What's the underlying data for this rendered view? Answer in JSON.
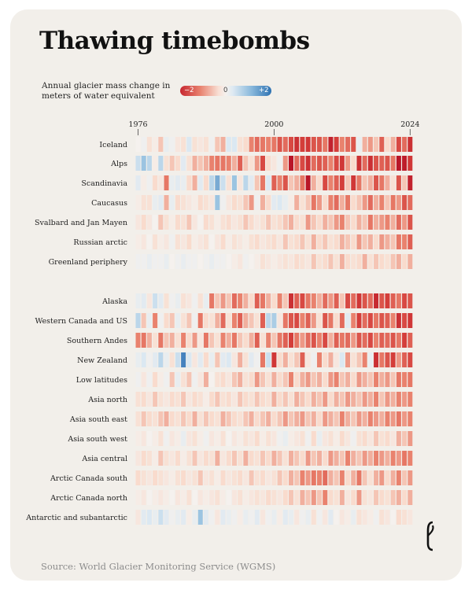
{
  "title": "Thawing timebombs",
  "legend": {
    "label": "Annual glacier mass change in meters of water equivalent",
    "min_label": "−2",
    "mid_label": "0",
    "max_label": "+2"
  },
  "source": "Source: World Glacier Monitoring Service (WGMS)",
  "logo": "Economist-e-logo",
  "colors": {
    "negative": "#c72730",
    "neutral": "#f5f1ee",
    "positive": "#2e72b2",
    "card": "#f2efea"
  },
  "chart_data": {
    "type": "heatmap",
    "title": "Thawing timebombs",
    "xlabel": "",
    "ylabel": "",
    "x_start": 1976,
    "x_end": 2024,
    "x_ticks": [
      1976,
      2000,
      2024
    ],
    "value_range": [
      -2,
      2
    ],
    "series": [
      {
        "name": "Iceland",
        "values": [
          0,
          0.1,
          -0.3,
          -0.1,
          -0.5,
          0.2,
          0.1,
          -0.2,
          -0.3,
          0.4,
          -0.3,
          -0.2,
          -0.3,
          0.1,
          -0.5,
          -0.6,
          0.4,
          0.4,
          -0.3,
          -0.4,
          -0.8,
          -1.0,
          -0.9,
          -0.8,
          -0.9,
          -1.2,
          -1.0,
          -1.3,
          -1.6,
          -1.4,
          -1.5,
          -1.2,
          -1.2,
          -0.9,
          -1.8,
          -1.4,
          -0.8,
          -1.0,
          -1.2,
          0.2,
          -0.6,
          -0.7,
          -0.5,
          -1.1,
          -0.4,
          -0.6,
          -1.3,
          -1.0,
          -1.6
        ]
      },
      {
        "name": "Alps",
        "values": [
          0.5,
          0.8,
          0.6,
          -0.1,
          0.6,
          -0.3,
          -0.5,
          -0.4,
          0.3,
          -0.3,
          -0.6,
          -0.5,
          -0.6,
          -0.8,
          -0.9,
          -0.9,
          -0.8,
          -0.6,
          -1.1,
          -0.5,
          -0.3,
          -0.7,
          -1.3,
          -0.4,
          -0.2,
          0.1,
          -0.7,
          -2.0,
          -1.0,
          -1.3,
          -1.6,
          -1.0,
          -1.2,
          -1.1,
          -0.8,
          -1.3,
          -1.5,
          -0.7,
          -0.4,
          -1.6,
          -1.0,
          -1.6,
          -1.2,
          -1.1,
          -1.2,
          -0.9,
          -2.2,
          -1.9,
          -1.5
        ]
      },
      {
        "name": "Scandinavia",
        "values": [
          0.3,
          -0.1,
          0.1,
          -0.4,
          -0.2,
          -0.9,
          0.2,
          0.3,
          0.2,
          -0.4,
          -0.6,
          0.3,
          -0.4,
          0.6,
          1.0,
          0.5,
          -0.3,
          0.8,
          -0.2,
          0.6,
          0.3,
          -0.5,
          -0.9,
          0.4,
          -1.1,
          -0.8,
          -1.2,
          -0.5,
          -0.6,
          -0.9,
          -2.1,
          -0.6,
          -0.4,
          -1.3,
          -0.8,
          -1.1,
          -1.4,
          -0.5,
          -1.5,
          -0.9,
          -0.5,
          -0.6,
          -1.2,
          -0.9,
          -0.6,
          -0.3,
          -1.2,
          -0.5,
          -1.8
        ]
      },
      {
        "name": "Caucasus",
        "values": [
          -0.1,
          -0.3,
          -0.3,
          0.2,
          0.3,
          -0.6,
          0.2,
          -0.4,
          -0.3,
          -0.2,
          -0.1,
          -0.4,
          -0.3,
          -0.2,
          0.8,
          0.1,
          -0.2,
          -0.4,
          -0.3,
          -0.5,
          -0.7,
          0.1,
          -0.6,
          -0.4,
          0.3,
          0.4,
          0.2,
          -0.1,
          -0.6,
          -0.3,
          -0.5,
          -0.9,
          -0.7,
          -0.4,
          -0.8,
          -1.0,
          -0.6,
          -0.9,
          -0.4,
          -0.5,
          -0.7,
          -1.0,
          -0.6,
          -0.8,
          -0.5,
          -0.9,
          -0.7,
          -1.2,
          -1.0
        ]
      },
      {
        "name": "Svalbard and Jan Mayen",
        "values": [
          -0.2,
          -0.4,
          -0.2,
          0,
          -0.5,
          -0.3,
          -0.1,
          -0.4,
          -0.3,
          -0.5,
          -0.2,
          0,
          -0.4,
          -0.3,
          -0.1,
          -0.3,
          -0.4,
          -0.2,
          -0.3,
          -0.5,
          -0.4,
          -0.2,
          -0.3,
          -0.5,
          -0.3,
          -0.4,
          -0.5,
          -0.6,
          -0.4,
          -0.3,
          -0.7,
          -0.5,
          -0.4,
          -0.6,
          -0.5,
          -0.7,
          -0.8,
          -0.5,
          -0.4,
          -0.6,
          -0.5,
          -0.9,
          -0.6,
          -0.7,
          -0.8,
          -0.6,
          -1.0,
          -0.7,
          -1.2
        ]
      },
      {
        "name": "Russian arctic",
        "values": [
          -0.1,
          -0.2,
          0,
          -0.3,
          -0.1,
          -0.2,
          0.1,
          -0.3,
          -0.2,
          -0.4,
          -0.1,
          -0.2,
          -0.3,
          0,
          -0.2,
          -0.4,
          -0.1,
          -0.3,
          -0.2,
          -0.1,
          -0.3,
          -0.4,
          -0.2,
          -0.3,
          -0.4,
          -0.2,
          -0.5,
          -0.3,
          -0.4,
          -0.5,
          -0.3,
          -0.6,
          -0.4,
          -0.5,
          -0.3,
          -0.4,
          -0.6,
          -0.5,
          -0.4,
          -0.7,
          -0.5,
          -0.6,
          -0.4,
          -0.7,
          -0.6,
          -0.5,
          -0.9,
          -0.8,
          -1.1
        ]
      },
      {
        "name": "Greenland periphery",
        "values": [
          0.1,
          0.1,
          0.2,
          0.1,
          0.1,
          0.2,
          0,
          0.1,
          0.2,
          0.1,
          0.1,
          0,
          0.1,
          0.2,
          0.1,
          0.1,
          0,
          -0.1,
          -0.2,
          0.1,
          0,
          -0.1,
          -0.3,
          -0.2,
          -0.1,
          -0.2,
          -0.3,
          -0.2,
          -0.4,
          -0.3,
          -0.2,
          -0.5,
          -0.3,
          -0.4,
          -0.5,
          -0.3,
          -0.6,
          -0.4,
          -0.3,
          -0.4,
          -0.6,
          -0.3,
          -0.5,
          -0.4,
          -0.3,
          -0.5,
          -0.6,
          -0.4,
          -0.6
        ]
      },
      {
        "name": "Alaska",
        "values": [
          0.2,
          0.3,
          -0.2,
          0.5,
          0.3,
          -0.3,
          0.1,
          0.2,
          -0.3,
          -0.2,
          0.1,
          -0.3,
          0.2,
          -0.9,
          -0.5,
          -0.7,
          -0.5,
          -1.0,
          -0.8,
          -0.6,
          -0.4,
          -1.1,
          -0.9,
          -0.6,
          -0.4,
          -0.8,
          -0.5,
          -1.6,
          -1.1,
          -1.3,
          -0.9,
          -0.8,
          -0.6,
          -1.0,
          -0.7,
          -1.1,
          -0.5,
          -1.3,
          -1.0,
          -1.5,
          -1.2,
          -1.0,
          -1.7,
          -1.2,
          -1.4,
          -1.1,
          -0.9,
          -1.3,
          -1.2
        ]
      },
      {
        "name": "Western Canada and US",
        "values": [
          0.6,
          -0.5,
          0.2,
          -0.8,
          0.1,
          -0.4,
          -0.5,
          0.2,
          -0.3,
          -0.5,
          0.1,
          -0.9,
          -0.4,
          -0.3,
          -0.6,
          -1.0,
          -0.3,
          -0.8,
          -1.1,
          -0.6,
          -0.5,
          -0.3,
          -1.1,
          0.6,
          0.7,
          -0.2,
          -0.9,
          -1.2,
          -1.3,
          -0.8,
          -1.1,
          -0.7,
          -0.3,
          -1.2,
          -0.9,
          -0.4,
          -1.0,
          0.3,
          -0.8,
          -1.4,
          -1.0,
          -1.3,
          -0.9,
          -1.2,
          -1.1,
          -0.8,
          -1.6,
          -1.3,
          -1.5
        ]
      },
      {
        "name": "Southern Andes",
        "values": [
          -0.8,
          -0.9,
          -0.6,
          -0.3,
          -0.9,
          -0.5,
          -0.6,
          -0.3,
          -0.8,
          -0.4,
          -0.7,
          -0.2,
          -0.9,
          -0.5,
          -0.3,
          -0.8,
          -0.6,
          -0.9,
          -0.5,
          -0.4,
          -0.6,
          -1.1,
          -0.3,
          -0.8,
          -0.5,
          -0.9,
          -1.1,
          -1.4,
          -0.9,
          -0.7,
          -1.0,
          -1.2,
          -0.8,
          -1.3,
          -0.6,
          -1.1,
          -0.9,
          -1.0,
          -0.7,
          -1.2,
          -1.0,
          -1.3,
          -0.8,
          -1.1,
          -1.0,
          -1.2,
          -0.9,
          -1.4,
          -1.1
        ]
      },
      {
        "name": "New Zealand",
        "values": [
          0.2,
          0.4,
          0.1,
          0.3,
          0.6,
          0.2,
          -0.3,
          0.5,
          1.3,
          0.4,
          -0.2,
          0.3,
          -0.4,
          0.2,
          -0.5,
          0.3,
          0.4,
          -0.2,
          -0.6,
          -0.3,
          0.3,
          0.1,
          -0.9,
          0.5,
          -1.5,
          -0.4,
          -0.6,
          -0.3,
          -0.5,
          -1.1,
          -0.2,
          0.1,
          -0.8,
          -0.4,
          -0.6,
          -0.2,
          0.4,
          -0.7,
          -0.3,
          -0.5,
          -0.8,
          0.2,
          -1.6,
          -0.9,
          -1.2,
          -1.4,
          -0.7,
          -1.1,
          -1.3
        ]
      },
      {
        "name": "Low latitudes",
        "values": [
          0.1,
          -0.2,
          0.1,
          -0.4,
          -0.1,
          0.1,
          -0.5,
          0.2,
          -0.3,
          -0.5,
          0.1,
          -0.2,
          -0.6,
          0,
          -0.3,
          -0.4,
          -0.2,
          -0.5,
          -0.6,
          -0.3,
          -0.4,
          -0.7,
          -0.5,
          -0.3,
          -0.6,
          -0.4,
          -0.5,
          -0.8,
          -0.4,
          -0.6,
          -0.7,
          -0.5,
          -0.6,
          -0.4,
          -0.7,
          -0.8,
          -0.5,
          -0.6,
          -0.4,
          -0.7,
          -0.6,
          -0.5,
          -0.8,
          -0.6,
          -0.7,
          -0.5,
          -0.9,
          -0.8,
          -0.9
        ]
      },
      {
        "name": "Asia north",
        "values": [
          -0.3,
          -0.4,
          -0.2,
          -0.5,
          -0.3,
          -0.2,
          -0.4,
          -0.3,
          -0.5,
          -0.2,
          -0.4,
          -0.3,
          -0.1,
          -0.4,
          -0.5,
          -0.3,
          -0.4,
          -0.2,
          -0.5,
          -0.4,
          -0.3,
          -0.5,
          -0.4,
          -0.3,
          -0.6,
          -0.4,
          -0.5,
          -0.3,
          -0.6,
          -0.5,
          -0.4,
          -0.6,
          -0.5,
          -0.7,
          -0.4,
          -0.6,
          -0.5,
          -0.7,
          -0.6,
          -0.5,
          -0.7,
          -0.6,
          -0.8,
          -0.5,
          -0.7,
          -0.6,
          -0.8,
          -0.7,
          -0.8
        ]
      },
      {
        "name": "Asia south east",
        "values": [
          -0.3,
          -0.5,
          -0.4,
          -0.3,
          -0.5,
          -0.6,
          -0.4,
          -0.3,
          -0.5,
          -0.4,
          -0.6,
          -0.3,
          -0.5,
          -0.4,
          -0.3,
          -0.6,
          -0.5,
          -0.4,
          -0.3,
          -0.5,
          -0.6,
          -0.4,
          -0.5,
          -0.6,
          -0.4,
          -0.5,
          -0.7,
          -0.5,
          -0.6,
          -0.7,
          -0.5,
          -0.6,
          -0.4,
          -0.7,
          -0.6,
          -0.5,
          -0.8,
          -0.6,
          -0.5,
          -0.7,
          -0.6,
          -0.8,
          -0.7,
          -0.6,
          -0.8,
          -0.7,
          -0.9,
          -0.7,
          -0.8
        ]
      },
      {
        "name": "Asia south west",
        "values": [
          -0.1,
          -0.2,
          0,
          -0.1,
          -0.3,
          0.1,
          -0.2,
          -0.1,
          0.2,
          -0.2,
          -0.3,
          -0.1,
          0.1,
          -0.2,
          -0.1,
          -0.3,
          0,
          -0.2,
          -0.1,
          -0.3,
          -0.2,
          -0.4,
          -0.1,
          -0.3,
          -0.2,
          0.1,
          0.2,
          -0.1,
          -0.2,
          -0.3,
          0.1,
          -0.4,
          0.2,
          -0.2,
          -0.3,
          -0.1,
          -0.4,
          -0.2,
          0.1,
          -0.3,
          -0.4,
          -0.2,
          -0.5,
          -0.3,
          -0.4,
          -0.2,
          -0.6,
          -0.5,
          -0.7
        ]
      },
      {
        "name": "Asia central",
        "values": [
          -0.2,
          -0.4,
          -0.3,
          -0.1,
          -0.5,
          -0.3,
          -0.2,
          -0.4,
          -0.1,
          -0.3,
          -0.5,
          -0.2,
          -0.4,
          -0.3,
          -0.6,
          -0.2,
          -0.4,
          -0.5,
          -0.3,
          -0.6,
          -0.4,
          -0.3,
          -0.5,
          -0.4,
          -0.6,
          -0.5,
          -0.3,
          -0.6,
          -0.5,
          -0.4,
          -0.7,
          -0.5,
          -0.6,
          -0.4,
          -0.7,
          -0.6,
          -0.5,
          -0.8,
          -0.6,
          -0.5,
          -0.7,
          -0.6,
          -0.8,
          -0.7,
          -0.6,
          -0.8,
          -0.7,
          -0.9,
          -0.8
        ]
      },
      {
        "name": "Arctic Canada south",
        "values": [
          -0.4,
          -0.3,
          -0.2,
          -0.4,
          -0.3,
          -0.2,
          -0.1,
          -0.3,
          -0.4,
          -0.2,
          -0.3,
          -0.5,
          -0.2,
          -0.3,
          -0.1,
          -0.4,
          -0.2,
          -0.3,
          -0.4,
          -0.2,
          -0.5,
          -0.3,
          -0.4,
          -0.2,
          -0.3,
          -0.5,
          -0.4,
          -0.6,
          -0.5,
          -0.8,
          -0.7,
          -0.9,
          -0.8,
          -1.0,
          -0.6,
          -0.5,
          -0.8,
          -0.4,
          -0.6,
          -0.9,
          -0.5,
          -0.3,
          -0.6,
          -0.7,
          -0.4,
          -0.6,
          -0.8,
          -0.5,
          -0.7
        ]
      },
      {
        "name": "Arctic Canada north",
        "values": [
          -0.1,
          -0.2,
          0,
          -0.1,
          -0.2,
          -0.1,
          0,
          -0.2,
          -0.1,
          -0.3,
          0,
          -0.2,
          -0.1,
          -0.2,
          -0.3,
          -0.1,
          0,
          -0.2,
          -0.3,
          -0.1,
          -0.2,
          -0.3,
          -0.2,
          -0.4,
          -0.3,
          -0.2,
          -0.4,
          -0.5,
          -0.3,
          -0.6,
          -0.5,
          -0.7,
          -0.5,
          -0.8,
          -0.4,
          -0.3,
          -0.6,
          -0.2,
          -0.4,
          -0.7,
          -0.3,
          -0.2,
          -0.5,
          -0.4,
          -0.3,
          -0.5,
          -0.6,
          -0.4,
          -0.6
        ]
      },
      {
        "name": "Antarctic and subantarctic",
        "values": [
          -0.2,
          0.3,
          0.4,
          0.2,
          0.5,
          0.3,
          0.1,
          0.2,
          0.3,
          -0.1,
          0.2,
          0.8,
          0.3,
          0.1,
          -0.2,
          0.3,
          0.2,
          0.1,
          -0.1,
          0.2,
          0.1,
          0.3,
          -0.2,
          0.1,
          0.2,
          -0.1,
          0.3,
          0.2,
          -0.2,
          0.1,
          0.2,
          -0.3,
          0.1,
          -0.2,
          0.3,
          0,
          -0.2,
          -0.1,
          0.2,
          -0.3,
          -0.2,
          -0.1,
          0.1,
          -0.3,
          -0.2,
          0,
          -0.4,
          -0.3,
          -0.2
        ]
      }
    ]
  }
}
